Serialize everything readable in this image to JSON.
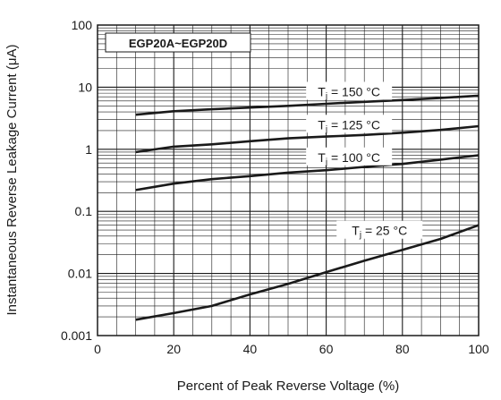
{
  "chart_data": {
    "type": "line",
    "title": "",
    "series_label": "EGP20A~EGP20D",
    "xlabel": "Percent of Peak Reverse Voltage (%)",
    "ylabel": "Instantaneous Reverse Leakage Current (μA)",
    "x_scale": "linear",
    "y_scale": "log",
    "xlim": [
      0,
      100
    ],
    "ylim": [
      0.001,
      100
    ],
    "x_ticks": [
      "0",
      "20",
      "40",
      "60",
      "80",
      "100"
    ],
    "y_ticks": [
      "0.001",
      "0.01",
      "0.1",
      "1",
      "10",
      "100"
    ],
    "grid": true,
    "line_color": "#1a1a1a",
    "series": [
      {
        "name": "Tj = 150 °C",
        "label_main": "T",
        "label_sub": "j",
        "label_rest": " = 150 °C",
        "x": [
          10,
          20,
          30,
          40,
          50,
          60,
          70,
          80,
          90,
          100
        ],
        "y": [
          3.6,
          4.1,
          4.4,
          4.7,
          5.0,
          5.4,
          5.8,
          6.2,
          6.7,
          7.3
        ]
      },
      {
        "name": "Tj = 125 °C",
        "label_main": "T",
        "label_sub": "j",
        "label_rest": " = 125 °C",
        "x": [
          10,
          20,
          30,
          40,
          50,
          60,
          70,
          80,
          90,
          100
        ],
        "y": [
          0.9,
          1.1,
          1.2,
          1.35,
          1.5,
          1.6,
          1.7,
          1.85,
          2.05,
          2.35
        ]
      },
      {
        "name": "Tj = 100 °C",
        "label_main": "T",
        "label_sub": "j",
        "label_rest": " = 100 °C",
        "x": [
          10,
          20,
          30,
          40,
          50,
          60,
          70,
          80,
          90,
          100
        ],
        "y": [
          0.22,
          0.28,
          0.33,
          0.37,
          0.42,
          0.46,
          0.52,
          0.58,
          0.68,
          0.8
        ]
      },
      {
        "name": "Tj = 25 °C",
        "label_main": "T",
        "label_sub": "j",
        "label_rest": " = 25 °C",
        "x": [
          10,
          20,
          30,
          40,
          50,
          60,
          70,
          80,
          90,
          100
        ],
        "y": [
          0.0018,
          0.0023,
          0.003,
          0.0046,
          0.0068,
          0.0105,
          0.016,
          0.024,
          0.036,
          0.06
        ]
      }
    ]
  }
}
